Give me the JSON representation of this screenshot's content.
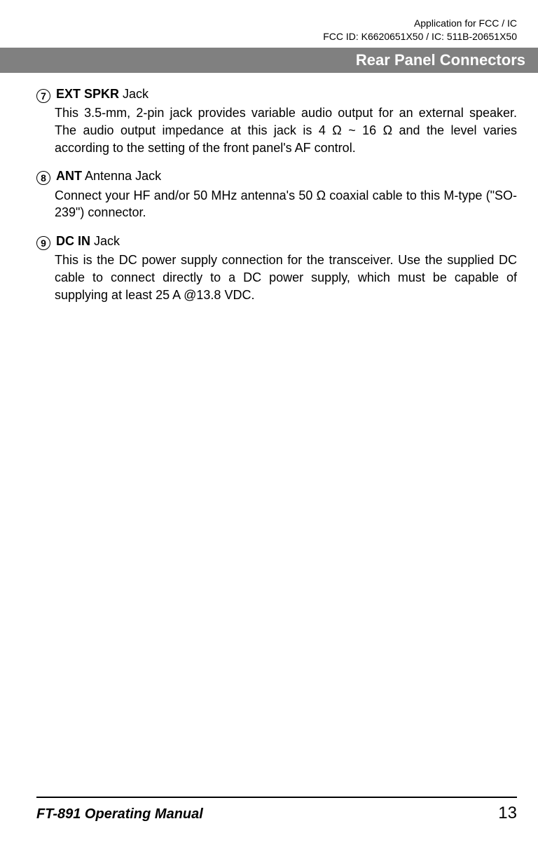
{
  "header": {
    "line1": "Application for FCC / IC",
    "line2": "FCC ID: K6620651X50 / IC: 511B-20651X50"
  },
  "section_title": "Rear Panel Connectors",
  "items": [
    {
      "num": "7",
      "title_bold": "EXT SPKR",
      "title_rest": " Jack",
      "desc": "This 3.5-mm, 2-pin jack provides variable audio output for an external speaker. The audio output impedance at this jack is 4 Ω ~ 16 Ω and the level varies according to the setting of the front panel's AF control."
    },
    {
      "num": "8",
      "title_bold": "ANT",
      "title_rest": " Antenna Jack",
      "desc": "Connect your HF and/or 50 MHz antenna's 50 Ω coaxial cable to this M-type (\"SO-239\") connector."
    },
    {
      "num": "9",
      "title_bold": "DC IN",
      "title_rest": " Jack",
      "desc": "This is the DC power supply connection for the transceiver. Use the supplied DC cable to connect directly to a DC power supply, which must be capable of supplying at least 25 A @13.8 VDC."
    }
  ],
  "footer": {
    "manual": "FT-891 Operating Manual",
    "page": "13"
  }
}
